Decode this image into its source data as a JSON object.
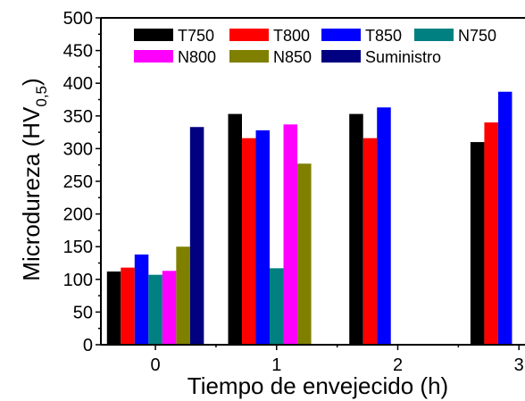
{
  "chart_data": {
    "type": "bar",
    "xlabel": "Tiempo de envejecido (h)",
    "ylabel": {
      "main": "Microdureza (HV",
      "sub": "0,5",
      "close": ")"
    },
    "x_ticks": [
      "0",
      "1",
      "2",
      "3"
    ],
    "x_range": [
      -0.45,
      3.05
    ],
    "ylim": [
      0,
      500
    ],
    "y_ticks": [
      "0",
      "50",
      "100",
      "150",
      "200",
      "250",
      "300",
      "350",
      "400",
      "450",
      "500"
    ],
    "legend_position": "top-right",
    "series": [
      {
        "name": "T750",
        "color": "#000000",
        "values": [
          112,
          353,
          353,
          310
        ]
      },
      {
        "name": "T800",
        "color": "#ff0000",
        "values": [
          118,
          316,
          316,
          340
        ]
      },
      {
        "name": "T850",
        "color": "#0000ff",
        "values": [
          138,
          328,
          363,
          387
        ]
      },
      {
        "name": "N750",
        "color": "#008080",
        "values": [
          107,
          117,
          null,
          null
        ]
      },
      {
        "name": "N800",
        "color": "#ff00ff",
        "values": [
          113,
          337,
          null,
          null
        ]
      },
      {
        "name": "N850",
        "color": "#808000",
        "values": [
          150,
          277,
          null,
          null
        ]
      },
      {
        "name": "Suministro",
        "color": "#000080",
        "values": [
          333,
          null,
          null,
          null
        ]
      }
    ]
  }
}
